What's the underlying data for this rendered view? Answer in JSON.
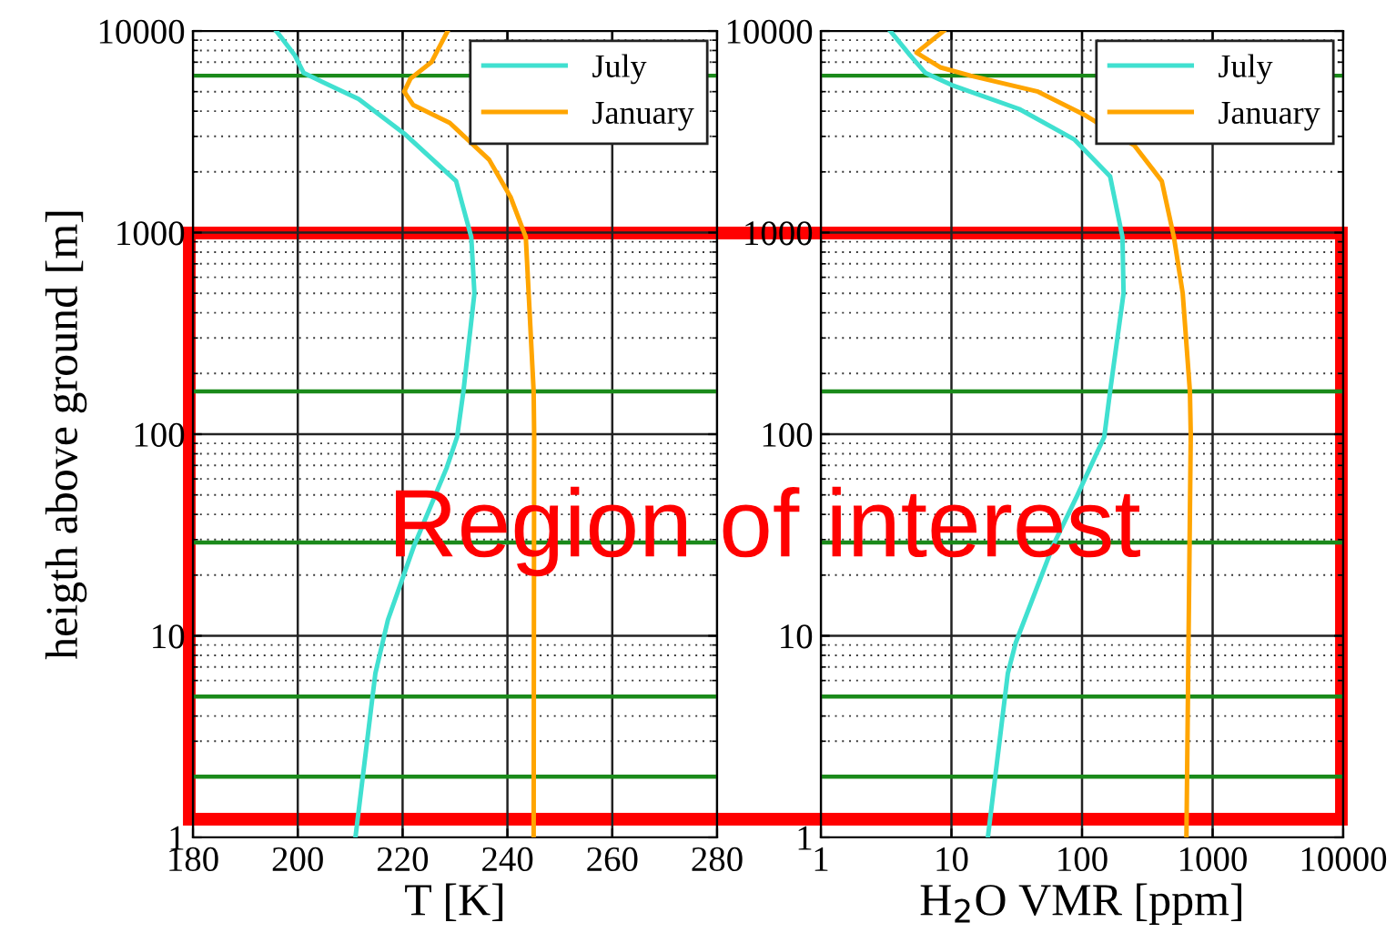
{
  "chart_data": [
    {
      "type": "line",
      "xlabel": "T [K]",
      "ylabel": "heigth above ground [m]",
      "log": "y",
      "grid": true,
      "legend": "top right",
      "xlim": [
        180,
        280
      ],
      "xticks": [
        180,
        200,
        220,
        240,
        260,
        280
      ],
      "ylim": [
        1,
        10000
      ],
      "yticks": [
        1,
        10,
        100,
        1000,
        10000
      ],
      "series": [
        {
          "name": "July",
          "color": "#40e0d0",
          "x": [
            211,
            214.8,
            217.2,
            222.2,
            228.4,
            230.4,
            231.6,
            233.7,
            233.1,
            230.2,
            220.3,
            211.6,
            204.6,
            201.1,
            199.4,
            195.9
          ],
          "values": [
            1,
            6.5,
            12,
            28,
            68,
            97,
            163,
            500,
            950,
            1800,
            3100,
            4600,
            5600,
            6200,
            7600,
            10000
          ]
        },
        {
          "name": "January",
          "color": "#ffa500",
          "x": [
            245,
            245.1,
            245,
            243.5,
            240.6,
            236.5,
            229,
            222,
            220.3,
            221.5,
            225.5,
            228.6
          ],
          "values": [
            1,
            100,
            163,
            950,
            1500,
            2300,
            3500,
            4300,
            5000,
            5800,
            7000,
            10000
          ]
        }
      ],
      "ref_lines": [
        {
          "axis": "y",
          "value": 2,
          "color": "#1a8a1a"
        },
        {
          "axis": "y",
          "value": 5,
          "color": "#1a8a1a"
        },
        {
          "axis": "y",
          "value": 29,
          "color": "#1a8a1a"
        },
        {
          "axis": "y",
          "value": 163,
          "color": "#1a8a1a"
        },
        {
          "axis": "y",
          "value": 6000,
          "color": "#1a8a1a"
        }
      ],
      "annotations": [
        "Region of interest"
      ]
    },
    {
      "type": "line",
      "xlabel": "H$_{2}$O VMR [ppm]",
      "log": "xy",
      "grid": true,
      "legend": "top right",
      "xlim": [
        1,
        10000
      ],
      "xticks": [
        1,
        10,
        100,
        1000,
        10000
      ],
      "ylim": [
        1,
        10000
      ],
      "yticks": [
        1,
        10,
        100,
        1000,
        10000
      ],
      "series": [
        {
          "name": "July",
          "color": "#40e0d0",
          "x": [
            19,
            27,
            31,
            60,
            91,
            148,
            164,
            208,
            204,
            164,
            87,
            33,
            10,
            6.3,
            4.8,
            3.4
          ],
          "values": [
            1,
            6.5,
            9.2,
            28,
            49,
            97,
            163,
            500,
            950,
            1900,
            2900,
            4100,
            5400,
            6200,
            7600,
            10000
          ]
        },
        {
          "name": "January",
          "color": "#ffa500",
          "x": [
            630,
            680,
            670,
            590,
            505,
            408,
            252,
            107,
            46,
            14,
            8.2,
            5.4,
            8.7
          ],
          "values": [
            1,
            100,
            163,
            500,
            950,
            1800,
            2700,
            3800,
            5000,
            6000,
            6600,
            7800,
            10000
          ]
        }
      ],
      "ref_lines": [
        {
          "axis": "y",
          "value": 2,
          "color": "#1a8a1a"
        },
        {
          "axis": "y",
          "value": 5,
          "color": "#1a8a1a"
        },
        {
          "axis": "y",
          "value": 29,
          "color": "#1a8a1a"
        },
        {
          "axis": "y",
          "value": 163,
          "color": "#1a8a1a"
        },
        {
          "axis": "y",
          "value": 6000,
          "color": "#1a8a1a"
        }
      ]
    }
  ]
}
